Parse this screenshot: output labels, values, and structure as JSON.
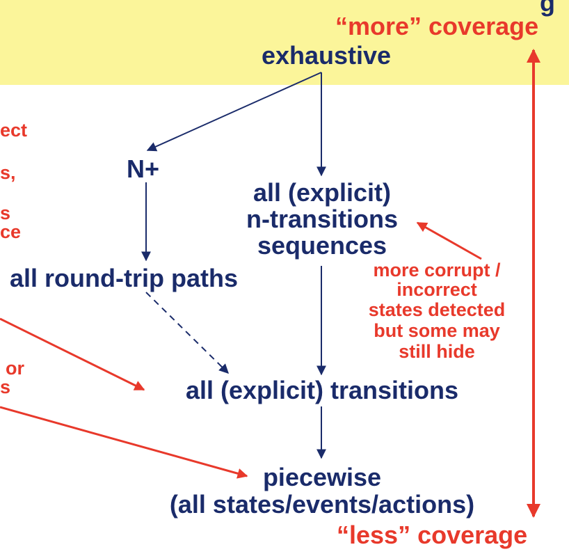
{
  "title_fragment": "g",
  "coverage": {
    "more": "“more” coverage",
    "less": "“less” coverage"
  },
  "nodes": {
    "exhaustive": "exhaustive",
    "n_plus": "N+",
    "n_transitions": [
      "all (explicit)",
      "n-transitions",
      "sequences"
    ],
    "round_trip": "all round-trip paths",
    "transitions": "all (explicit) transitions",
    "piecewise": [
      "piecewise",
      "(all states/events/actions)"
    ]
  },
  "annotation": [
    "more corrupt /",
    "incorrect",
    "states detected",
    "but some may",
    "still hide"
  ],
  "cut_left_text": [
    "ect",
    "s,",
    "s",
    "ce",
    "or",
    "s"
  ],
  "colors": {
    "banner": "#fbf59a",
    "navy": "#1a2b6a",
    "red": "#e8392b"
  }
}
